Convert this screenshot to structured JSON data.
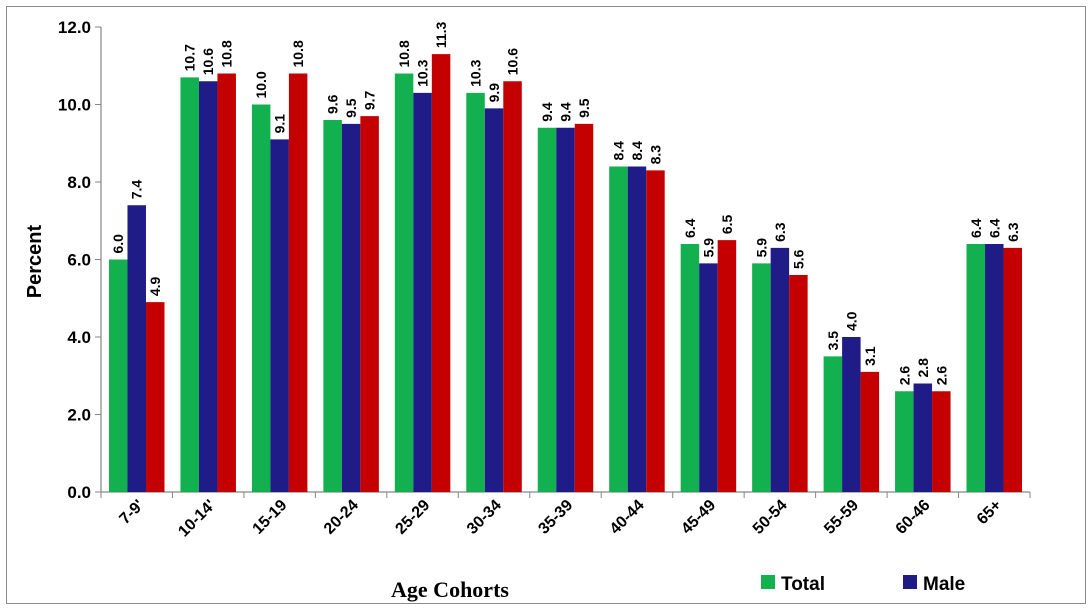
{
  "chart_data": {
    "type": "bar",
    "title": "",
    "xlabel": "Age Cohorts",
    "ylabel": "Percent",
    "ylim": [
      0,
      12
    ],
    "yticks": [
      "0.0",
      "2.0",
      "4.0",
      "6.0",
      "8.0",
      "10.0",
      "12.0"
    ],
    "categories": [
      "7-9'",
      "10-14'",
      "15-19",
      "20-24",
      "25-29",
      "30-34",
      "35-39",
      "40-44",
      "45-49",
      "50-54",
      "55-59",
      "60-46",
      "65+"
    ],
    "series": [
      {
        "name": "Total",
        "color": "#12b04f",
        "values": [
          6.0,
          10.7,
          10.0,
          9.6,
          10.8,
          10.3,
          9.4,
          8.4,
          6.4,
          5.9,
          3.5,
          2.6,
          6.4
        ]
      },
      {
        "name": "Male",
        "color": "#1f1b87",
        "values": [
          7.4,
          10.6,
          9.1,
          9.5,
          10.3,
          9.9,
          9.4,
          8.4,
          5.9,
          6.3,
          4.0,
          2.8,
          6.4
        ]
      },
      {
        "name": "",
        "color": "#c40000",
        "values": [
          4.9,
          10.8,
          10.8,
          9.7,
          11.3,
          10.6,
          9.5,
          8.3,
          6.5,
          5.6,
          3.1,
          2.6,
          6.3
        ]
      }
    ],
    "grid": false,
    "legend": [
      "Total",
      "Male"
    ],
    "legend_position": "bottom-right"
  }
}
